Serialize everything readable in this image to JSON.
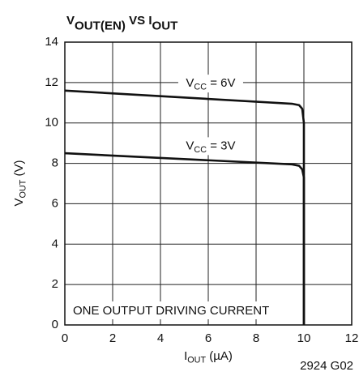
{
  "chart_data": {
    "type": "line",
    "title": [
      "V",
      "OUT(EN)",
      " VS I",
      "OUT"
    ],
    "x_label": [
      "I",
      "OUT",
      " (µA)"
    ],
    "y_label": [
      "V",
      "OUT",
      " (V)"
    ],
    "annotation": "ONE OUTPUT DRIVING CURRENT",
    "figure_id": "2924 G02",
    "xlim": [
      0,
      12
    ],
    "xticks": [
      0,
      2,
      4,
      6,
      8,
      10,
      12
    ],
    "ylim": [
      0,
      14
    ],
    "yticks": [
      0,
      2,
      4,
      6,
      8,
      10,
      12,
      14
    ],
    "grid": true,
    "series": [
      {
        "name": [
          "V",
          "CC",
          " = 6V"
        ],
        "color": "#111111",
        "x": [
          0,
          9.5,
          9.8,
          9.93,
          10,
          10
        ],
        "values": [
          11.6,
          10.95,
          10.88,
          10.7,
          10,
          0
        ]
      },
      {
        "name": [
          "V",
          "CC",
          " = 3V"
        ],
        "color": "#111111",
        "x": [
          0,
          9.5,
          9.8,
          9.93,
          10,
          10
        ],
        "values": [
          8.5,
          7.95,
          7.88,
          7.7,
          7.3,
          0
        ]
      }
    ]
  }
}
